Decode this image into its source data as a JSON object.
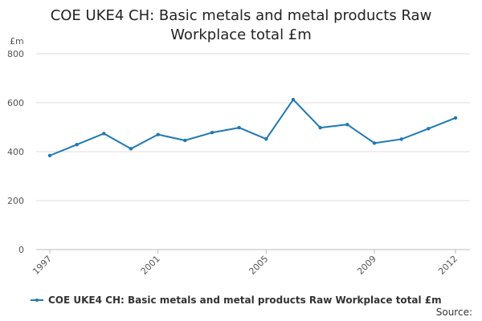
{
  "colors": {
    "series": "#1f78b4",
    "grid": "#dddddd",
    "axis": "#bbbbbb",
    "text": "#555555"
  },
  "chart_data": {
    "type": "line",
    "title": "COE UKE4 CH: Basic metals and metal products Raw Workplace total £m",
    "ylabel": "£m",
    "xlabel": "",
    "ylim": [
      0,
      800
    ],
    "yticks": [
      0,
      200,
      400,
      600,
      800
    ],
    "xlim": [
      1997,
      2012
    ],
    "xticks": [
      1997,
      2001,
      2005,
      2009,
      2012
    ],
    "grid": true,
    "legend_position": "bottom",
    "series": [
      {
        "name": "COE UKE4 CH: Basic metals and metal products Raw Workplace total £m",
        "x": [
          1997,
          1998,
          1999,
          2000,
          2001,
          2002,
          2003,
          2004,
          2005,
          2006,
          2007,
          2008,
          2009,
          2010,
          2011,
          2012
        ],
        "values": [
          384,
          429,
          474,
          412,
          470,
          446,
          478,
          498,
          452,
          613,
          498,
          511,
          435,
          451,
          494,
          538
        ]
      }
    ]
  },
  "source_label": "Source:"
}
